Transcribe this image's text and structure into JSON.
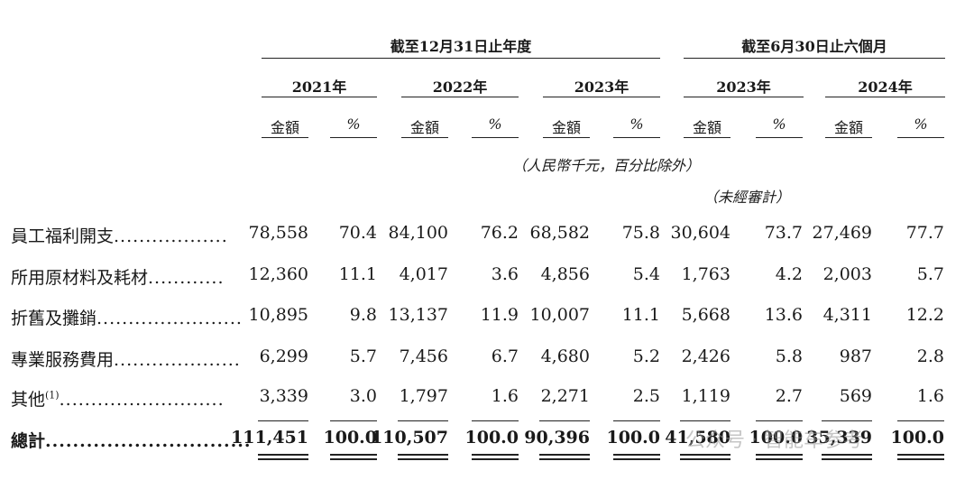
{
  "header": {
    "group_full_year": "截至12月31日止年度",
    "group_six_month": "截至6月30日止六個月",
    "years": [
      "2021年",
      "2022年",
      "2023年",
      "2023年",
      "2024年"
    ],
    "col_amount": "金額",
    "col_pct": "%",
    "unit_note": "（人民幣千元，百分比除外）",
    "unaudited_note": "（未經審計）"
  },
  "rows": [
    {
      "label": "員工福利開支",
      "dots": "..................",
      "values": [
        "78,558",
        "70.4",
        "84,100",
        "76.2",
        "68,582",
        "75.8",
        "30,604",
        "73.7",
        "27,469",
        "77.7"
      ]
    },
    {
      "label": "所用原材料及耗材",
      "dots": "............",
      "values": [
        "12,360",
        "11.1",
        "4,017",
        "3.6",
        "4,856",
        "5.4",
        "1,763",
        "4.2",
        "2,003",
        "5.7"
      ]
    },
    {
      "label": "折舊及攤銷",
      "dots": ".......................",
      "values": [
        "10,895",
        "9.8",
        "13,137",
        "11.9",
        "10,007",
        "11.1",
        "5,668",
        "13.6",
        "4,311",
        "12.2"
      ]
    },
    {
      "label": "專業服務費用",
      "dots": "....................",
      "values": [
        "6,299",
        "5.7",
        "7,456",
        "6.7",
        "4,680",
        "5.2",
        "2,426",
        "5.8",
        "987",
        "2.8"
      ]
    },
    {
      "label": "其他",
      "superscript": "(1)",
      "dots": "..........................",
      "values": [
        "3,339",
        "3.0",
        "1,797",
        "1.6",
        "2,271",
        "2.5",
        "1,119",
        "2.7",
        "569",
        "1.6"
      ]
    }
  ],
  "total": {
    "label": "總計",
    "dots": "..............................",
    "values": [
      "111,451",
      "100.0",
      "110,507",
      "100.0",
      "90,396",
      "100.0",
      "41,580",
      "100.0",
      "35,339",
      "100.0"
    ]
  },
  "watermark": {
    "text": "公众号 · 智能车参考"
  }
}
